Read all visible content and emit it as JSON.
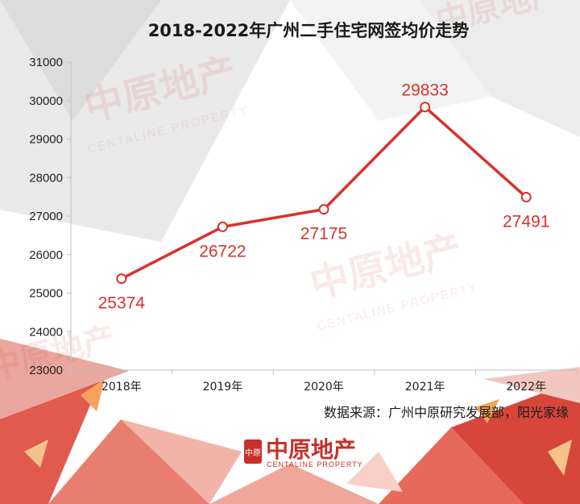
{
  "chart_data": {
    "type": "line",
    "title": "2018-2022年广州二手住宅网签均价走势",
    "categories": [
      "2018年",
      "2019年",
      "2020年",
      "2021年",
      "2022年"
    ],
    "series": [
      {
        "values": [
          25374,
          26722,
          27175,
          29833,
          27491
        ]
      }
    ],
    "data_labels": [
      "25374",
      "26722",
      "27175",
      "29833",
      "27491"
    ],
    "ylim": [
      23000,
      31000
    ],
    "yticks": [
      23000,
      24000,
      25000,
      26000,
      27000,
      28000,
      29000,
      30000,
      31000
    ],
    "ytick_labels": [
      "23000",
      "24000",
      "25000",
      "26000",
      "27000",
      "28000",
      "29000",
      "30000",
      "31000"
    ],
    "xlabel": "",
    "ylabel": "",
    "grid": false,
    "line_color": "#d8332c"
  },
  "source_note": "数据来源：广州中原研究发展部，阳光家缘",
  "logo": {
    "cn": "中原地产",
    "en": "CENTALINE PROPERTY",
    "seal": "中原"
  },
  "watermark": {
    "cn": "中原地产",
    "en": "CENTALINE PROPERTY"
  }
}
